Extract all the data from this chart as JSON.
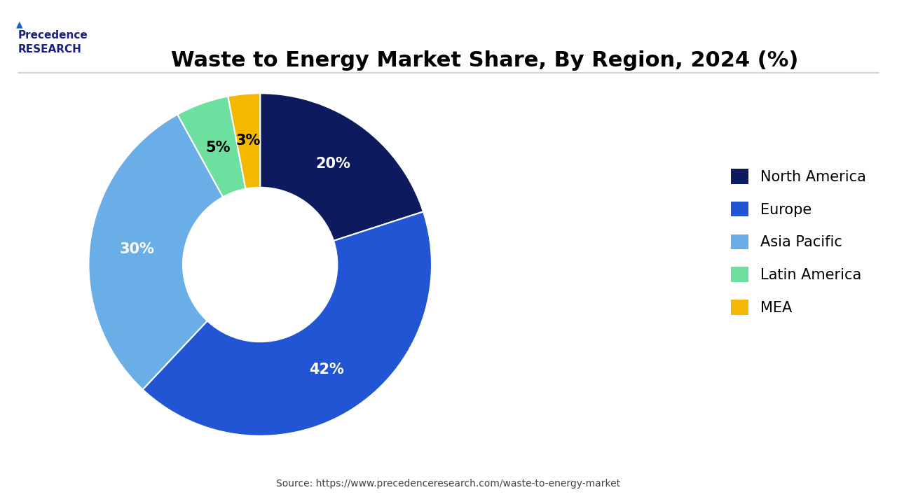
{
  "title": "Waste to Energy Market Share, By Region, 2024 (%)",
  "labels": [
    "North America",
    "Europe",
    "Asia Pacific",
    "Latin America",
    "MEA"
  ],
  "values": [
    20,
    42,
    30,
    5,
    3
  ],
  "colors": [
    "#0d1b5e",
    "#2255d4",
    "#6aaee8",
    "#6de0a0",
    "#f5b800"
  ],
  "pct_labels": [
    "20%",
    "42%",
    "30%",
    "5%",
    "3%"
  ],
  "pct_colors": [
    "white",
    "white",
    "white",
    "black",
    "black"
  ],
  "source_text": "Source: https://www.precedenceresearch.com/waste-to-energy-market",
  "background_color": "#ffffff",
  "title_fontsize": 22,
  "legend_fontsize": 15
}
